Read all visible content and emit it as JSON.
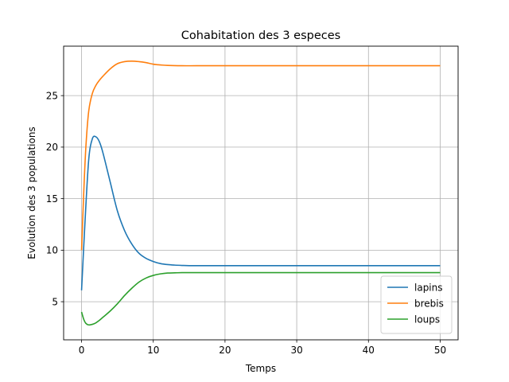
{
  "chart_data": {
    "type": "line",
    "title": "Cohabitation des 3 especes",
    "xlabel": "Temps",
    "ylabel": "Evolution des 3 populations",
    "xlim": [
      -2.5,
      52.5
    ],
    "ylim": [
      1.3,
      29.8
    ],
    "xticks": [
      0,
      10,
      20,
      30,
      40,
      50
    ],
    "yticks": [
      5,
      10,
      15,
      20,
      25
    ],
    "xtick_labels": [
      "0",
      "10",
      "20",
      "30",
      "40",
      "50"
    ],
    "ytick_labels": [
      "5",
      "10",
      "15",
      "20",
      "25"
    ],
    "grid": true,
    "legend_position": "lower-right",
    "series": [
      {
        "name": "lapins",
        "color": "#1f77b4",
        "x": [
          0,
          0.5,
          1,
          1.5,
          2,
          2.5,
          3,
          4,
          5,
          6,
          7,
          8,
          9,
          10,
          11,
          12,
          13,
          14,
          15,
          17,
          20,
          25,
          30,
          35,
          40,
          45,
          50
        ],
        "y": [
          6.1,
          13.0,
          18.8,
          20.8,
          21.0,
          20.5,
          19.4,
          16.6,
          13.8,
          11.9,
          10.6,
          9.7,
          9.2,
          8.9,
          8.7,
          8.6,
          8.55,
          8.52,
          8.5,
          8.5,
          8.5,
          8.5,
          8.5,
          8.5,
          8.5,
          8.5,
          8.5
        ]
      },
      {
        "name": "brebis",
        "color": "#ff7f0e",
        "x": [
          0,
          0.3,
          0.6,
          1,
          1.5,
          2,
          2.5,
          3,
          4,
          5,
          6,
          7,
          8,
          9,
          10,
          11,
          12,
          14,
          16,
          20,
          30,
          40,
          50
        ],
        "y": [
          10.0,
          15.5,
          20.0,
          23.5,
          25.2,
          26.0,
          26.5,
          26.9,
          27.6,
          28.1,
          28.3,
          28.35,
          28.3,
          28.2,
          28.05,
          27.98,
          27.93,
          27.9,
          27.9,
          27.9,
          27.9,
          27.9,
          27.9
        ]
      },
      {
        "name": "loups",
        "color": "#2ca02c",
        "x": [
          0,
          0.3,
          0.6,
          1,
          1.5,
          2,
          2.5,
          3,
          4,
          5,
          6,
          7,
          8,
          9,
          10,
          11,
          12,
          13,
          14,
          16,
          20,
          30,
          40,
          50
        ],
        "y": [
          4.0,
          3.3,
          2.9,
          2.75,
          2.8,
          2.95,
          3.2,
          3.5,
          4.1,
          4.8,
          5.6,
          6.3,
          6.9,
          7.3,
          7.55,
          7.7,
          7.78,
          7.8,
          7.82,
          7.82,
          7.82,
          7.82,
          7.82,
          7.82
        ]
      }
    ]
  }
}
